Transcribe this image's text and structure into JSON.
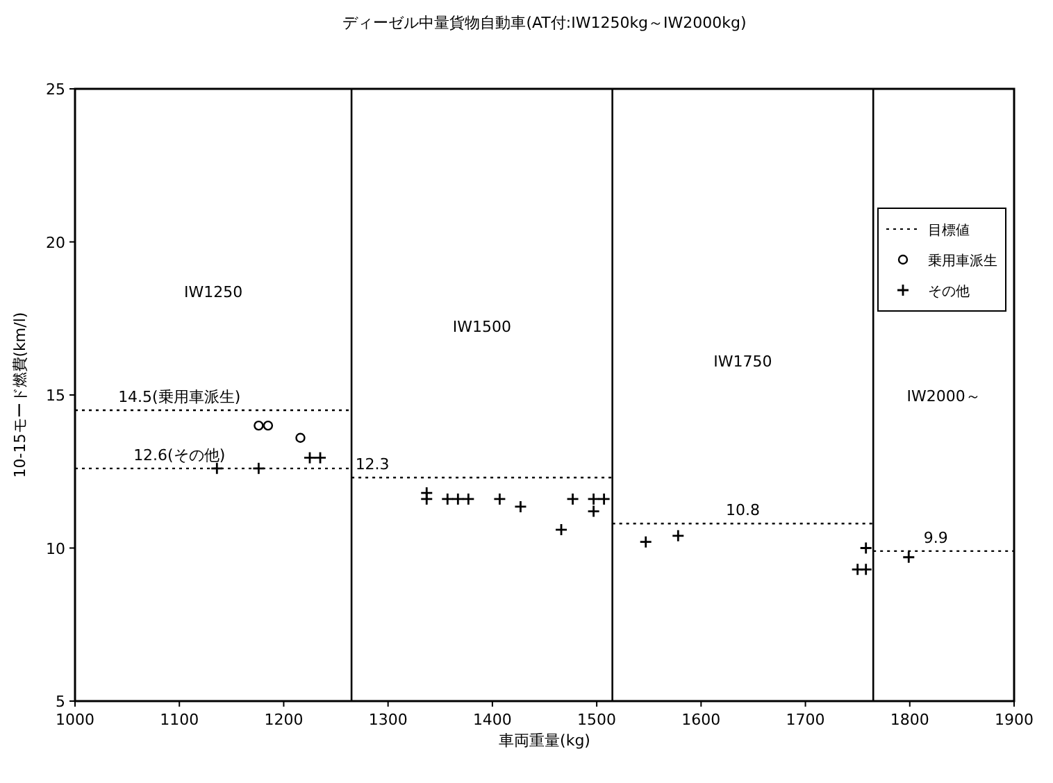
{
  "chart_data": {
    "type": "scatter",
    "title": "ディーゼル中量貨物自動車(AT付:IW1250kg～IW2000kg)",
    "xlabel": "車両重量(kg)",
    "ylabel": "10-15モード燃費(km/l)",
    "xlim": [
      1000,
      1900
    ],
    "xticks": [
      1000,
      1100,
      1200,
      1300,
      1400,
      1500,
      1600,
      1700,
      1800,
      1900
    ],
    "ylim": [
      5,
      25
    ],
    "yticks": [
      5,
      10,
      15,
      20,
      25
    ],
    "grid": false,
    "legend": "top right",
    "series": [
      {
        "name": "目標値",
        "type": "line",
        "line_style": "dotted",
        "marker": "none",
        "color": "#000000",
        "x": [
          1000,
          1265
        ],
        "values": [
          14.5,
          14.5
        ]
      },
      {
        "type": "line",
        "line_style": "dotted",
        "marker": "none",
        "color": "#000000",
        "x": [
          1000,
          1265
        ],
        "values": [
          12.6,
          12.6
        ]
      },
      {
        "type": "line",
        "line_style": "dotted",
        "marker": "none",
        "color": "#000000",
        "x": [
          1265,
          1515
        ],
        "values": [
          12.3,
          12.3
        ]
      },
      {
        "type": "line",
        "line_style": "dotted",
        "marker": "none",
        "color": "#000000",
        "x": [
          1515,
          1765
        ],
        "values": [
          10.8,
          10.8
        ]
      },
      {
        "type": "line",
        "line_style": "dotted",
        "marker": "none",
        "color": "#000000",
        "x": [
          1765,
          1900
        ],
        "values": [
          9.9,
          9.9
        ]
      },
      {
        "name": "乗用車派生",
        "marker": "circle",
        "color": "#000000",
        "x": [
          1176,
          1185,
          1216
        ],
        "values": [
          14.0,
          14.0,
          13.6
        ]
      },
      {
        "name": "その他",
        "marker": "cross",
        "color": "#000000",
        "x": [
          1136,
          1176,
          1225,
          1235,
          1337,
          1337,
          1357,
          1367,
          1377,
          1407,
          1427,
          1466,
          1477,
          1497,
          1507,
          1497,
          1547,
          1578,
          1758,
          1750,
          1758,
          1799
        ],
        "values": [
          12.6,
          12.6,
          12.95,
          12.95,
          11.8,
          11.6,
          11.6,
          11.6,
          11.6,
          11.6,
          11.35,
          10.6,
          11.6,
          11.6,
          11.6,
          11.2,
          10.2,
          10.4,
          10.0,
          9.3,
          9.3,
          9.7
        ]
      }
    ],
    "ref_lines": [
      {
        "axis": "x",
        "value": 1265,
        "line_style": "solid"
      },
      {
        "axis": "x",
        "value": 1515,
        "line_style": "solid"
      },
      {
        "axis": "x",
        "value": 1765,
        "line_style": "solid"
      }
    ],
    "annotations": [
      "IW1250",
      "IW1500",
      "IW1750",
      "IW2000～",
      {
        "text": "14.5(乗用車派生)",
        "x": 1100,
        "y": 14.5
      },
      {
        "text": "12.6(その他)",
        "x": 1100,
        "y": 12.6
      },
      {
        "text": "12.3",
        "x": 1285,
        "y": 12.3
      },
      {
        "text": "10.8",
        "x": 1640,
        "y": 10.8
      },
      {
        "text": "9.9",
        "x": 1825,
        "y": 9.9
      }
    ]
  }
}
